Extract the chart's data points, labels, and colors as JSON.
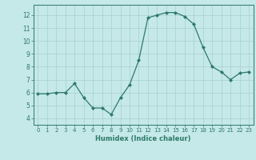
{
  "x": [
    0,
    1,
    2,
    3,
    4,
    5,
    6,
    7,
    8,
    9,
    10,
    11,
    12,
    13,
    14,
    15,
    16,
    17,
    18,
    19,
    20,
    21,
    22,
    23
  ],
  "y": [
    5.9,
    5.9,
    6.0,
    6.0,
    6.7,
    5.6,
    4.8,
    4.8,
    4.3,
    5.6,
    6.6,
    8.5,
    11.8,
    12.0,
    12.2,
    12.2,
    11.9,
    11.3,
    9.5,
    8.0,
    7.6,
    7.0,
    7.5,
    7.6
  ],
  "line_color": "#2d7a6a",
  "marker_color": "#2d7a6a",
  "bg_color": "#c5e8e8",
  "grid_color": "#a8d0d0",
  "xlabel": "Humidex (Indice chaleur)",
  "ylim": [
    3.5,
    12.8
  ],
  "xlim": [
    -0.5,
    23.5
  ],
  "yticks": [
    4,
    5,
    6,
    7,
    8,
    9,
    10,
    11,
    12
  ],
  "xticks": [
    0,
    1,
    2,
    3,
    4,
    5,
    6,
    7,
    8,
    9,
    10,
    11,
    12,
    13,
    14,
    15,
    16,
    17,
    18,
    19,
    20,
    21,
    22,
    23
  ],
  "tick_color": "#2d7a6a",
  "label_color": "#2d7a6a",
  "spine_color": "#2d7a6a"
}
